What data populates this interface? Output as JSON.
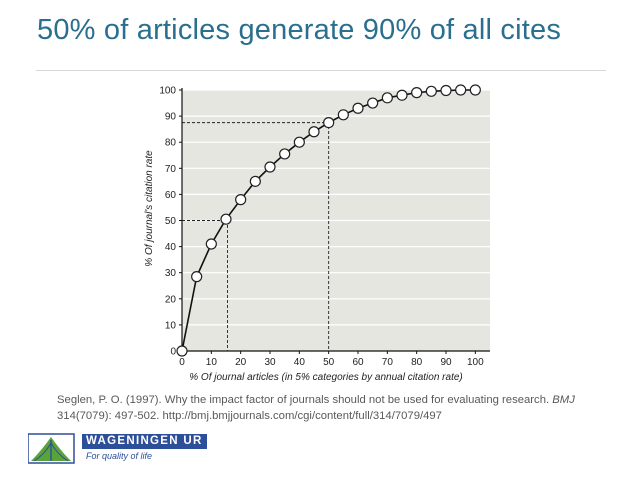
{
  "slide": {
    "title": "50% of articles generate 90% of all cites"
  },
  "citation": {
    "text_before": "Seglen, P. O. (1997). Why the impact factor of journals should not be used for evaluating research. ",
    "journal": "BMJ",
    "text_after": " 314(7079): 497-502. http://bmj.bmjjournals.com/cgi/content/full/314/7079/497"
  },
  "logo": {
    "wordmark": "WAGENINGEN",
    "wordmark_suffix": "UR",
    "tagline": "For quality of life",
    "brand_color": "#2d4f9a",
    "green_color": "#5aa33a"
  },
  "chart_data": {
    "type": "line",
    "xlabel": "% Of journal articles (in 5% categories by annual citation rate)",
    "ylabel": "% Of journal's citation rate",
    "xlim": [
      0,
      105
    ],
    "ylim": [
      0,
      100
    ],
    "xticks": [
      0,
      10,
      20,
      30,
      40,
      50,
      60,
      70,
      80,
      90,
      100
    ],
    "yticks": [
      0,
      10,
      20,
      30,
      40,
      50,
      60,
      70,
      80,
      90,
      100
    ],
    "grid": true,
    "background_color": "#e6e6e0",
    "series": [
      {
        "x": [
          0,
          5,
          10,
          15,
          20,
          25,
          30,
          35,
          40,
          45,
          50,
          55,
          60,
          65,
          70,
          75,
          80,
          85,
          90,
          95,
          100
        ],
        "y": [
          0,
          28.5,
          41,
          50.5,
          58,
          65,
          70.5,
          75.5,
          80,
          84,
          87.5,
          90.5,
          93,
          95,
          97,
          98,
          99,
          99.5,
          99.8,
          100,
          100
        ]
      }
    ],
    "reference_lines": [
      {
        "x": 15.5,
        "y": 50
      },
      {
        "x": 50,
        "y": 87.5
      }
    ]
  }
}
